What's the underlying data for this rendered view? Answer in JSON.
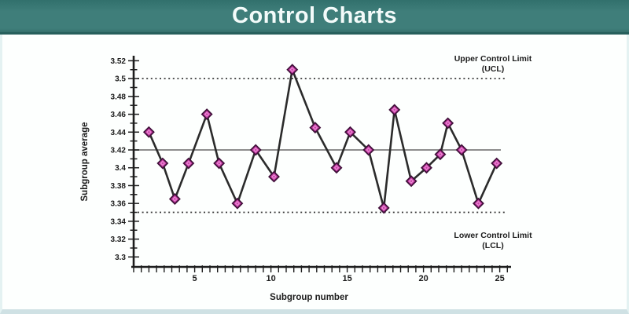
{
  "header": {
    "title": "Control Charts",
    "bg_color": "#3f7e7a",
    "text_color": "#f3fbfa"
  },
  "chart_data": {
    "type": "line",
    "title": "",
    "xlabel": "Subgroup number",
    "ylabel": "Subgroup average",
    "xlim": [
      1,
      25.8
    ],
    "ylim": [
      3.3,
      3.52
    ],
    "x_tick_labels": [
      5,
      10,
      15,
      20,
      25
    ],
    "x_minor_tick_step": 0.5,
    "y_tick_labels": [
      3.3,
      3.32,
      3.34,
      3.36,
      3.38,
      3.4,
      3.42,
      3.44,
      3.46,
      3.48,
      3.5,
      3.52
    ],
    "y_minor_tick_step": 0.01,
    "grid": "off",
    "center_line_value": 3.42,
    "ucl_value": 3.5,
    "lcl_value": 3.35,
    "ucl_label_line1": "Upper Control Limit",
    "ucl_label_line2": "(UCL)",
    "lcl_label_line1": "Lower Control Limit",
    "lcl_label_line2": "(LCL)",
    "series": [
      {
        "name": "subgroup-averages",
        "x": [
          2,
          2.9,
          3.7,
          4.6,
          5.8,
          6.6,
          7.8,
          9,
          10.2,
          11.4,
          12.9,
          14.3,
          15.2,
          16.4,
          17.4,
          18.1,
          19.2,
          20.2,
          21.1,
          21.6,
          22.5,
          23.6,
          24.8
        ],
        "y": [
          3.44,
          3.405,
          3.365,
          3.405,
          3.46,
          3.405,
          3.36,
          3.42,
          3.39,
          3.51,
          3.445,
          3.4,
          3.44,
          3.42,
          3.355,
          3.465,
          3.385,
          3.4,
          3.415,
          3.45,
          3.42,
          3.36,
          3.405
        ]
      }
    ],
    "marker": "diamond",
    "colors": {
      "marker_fill": "#cb3fa9",
      "marker_inner": "#ee9ada",
      "marker_stroke": "#40103a",
      "series_line": "#2b2b2b",
      "axis": "#1d1d1d",
      "center_line": "#7d7d7d",
      "limit_line": "#3a3a3a",
      "text": "#1c1c1c"
    }
  }
}
